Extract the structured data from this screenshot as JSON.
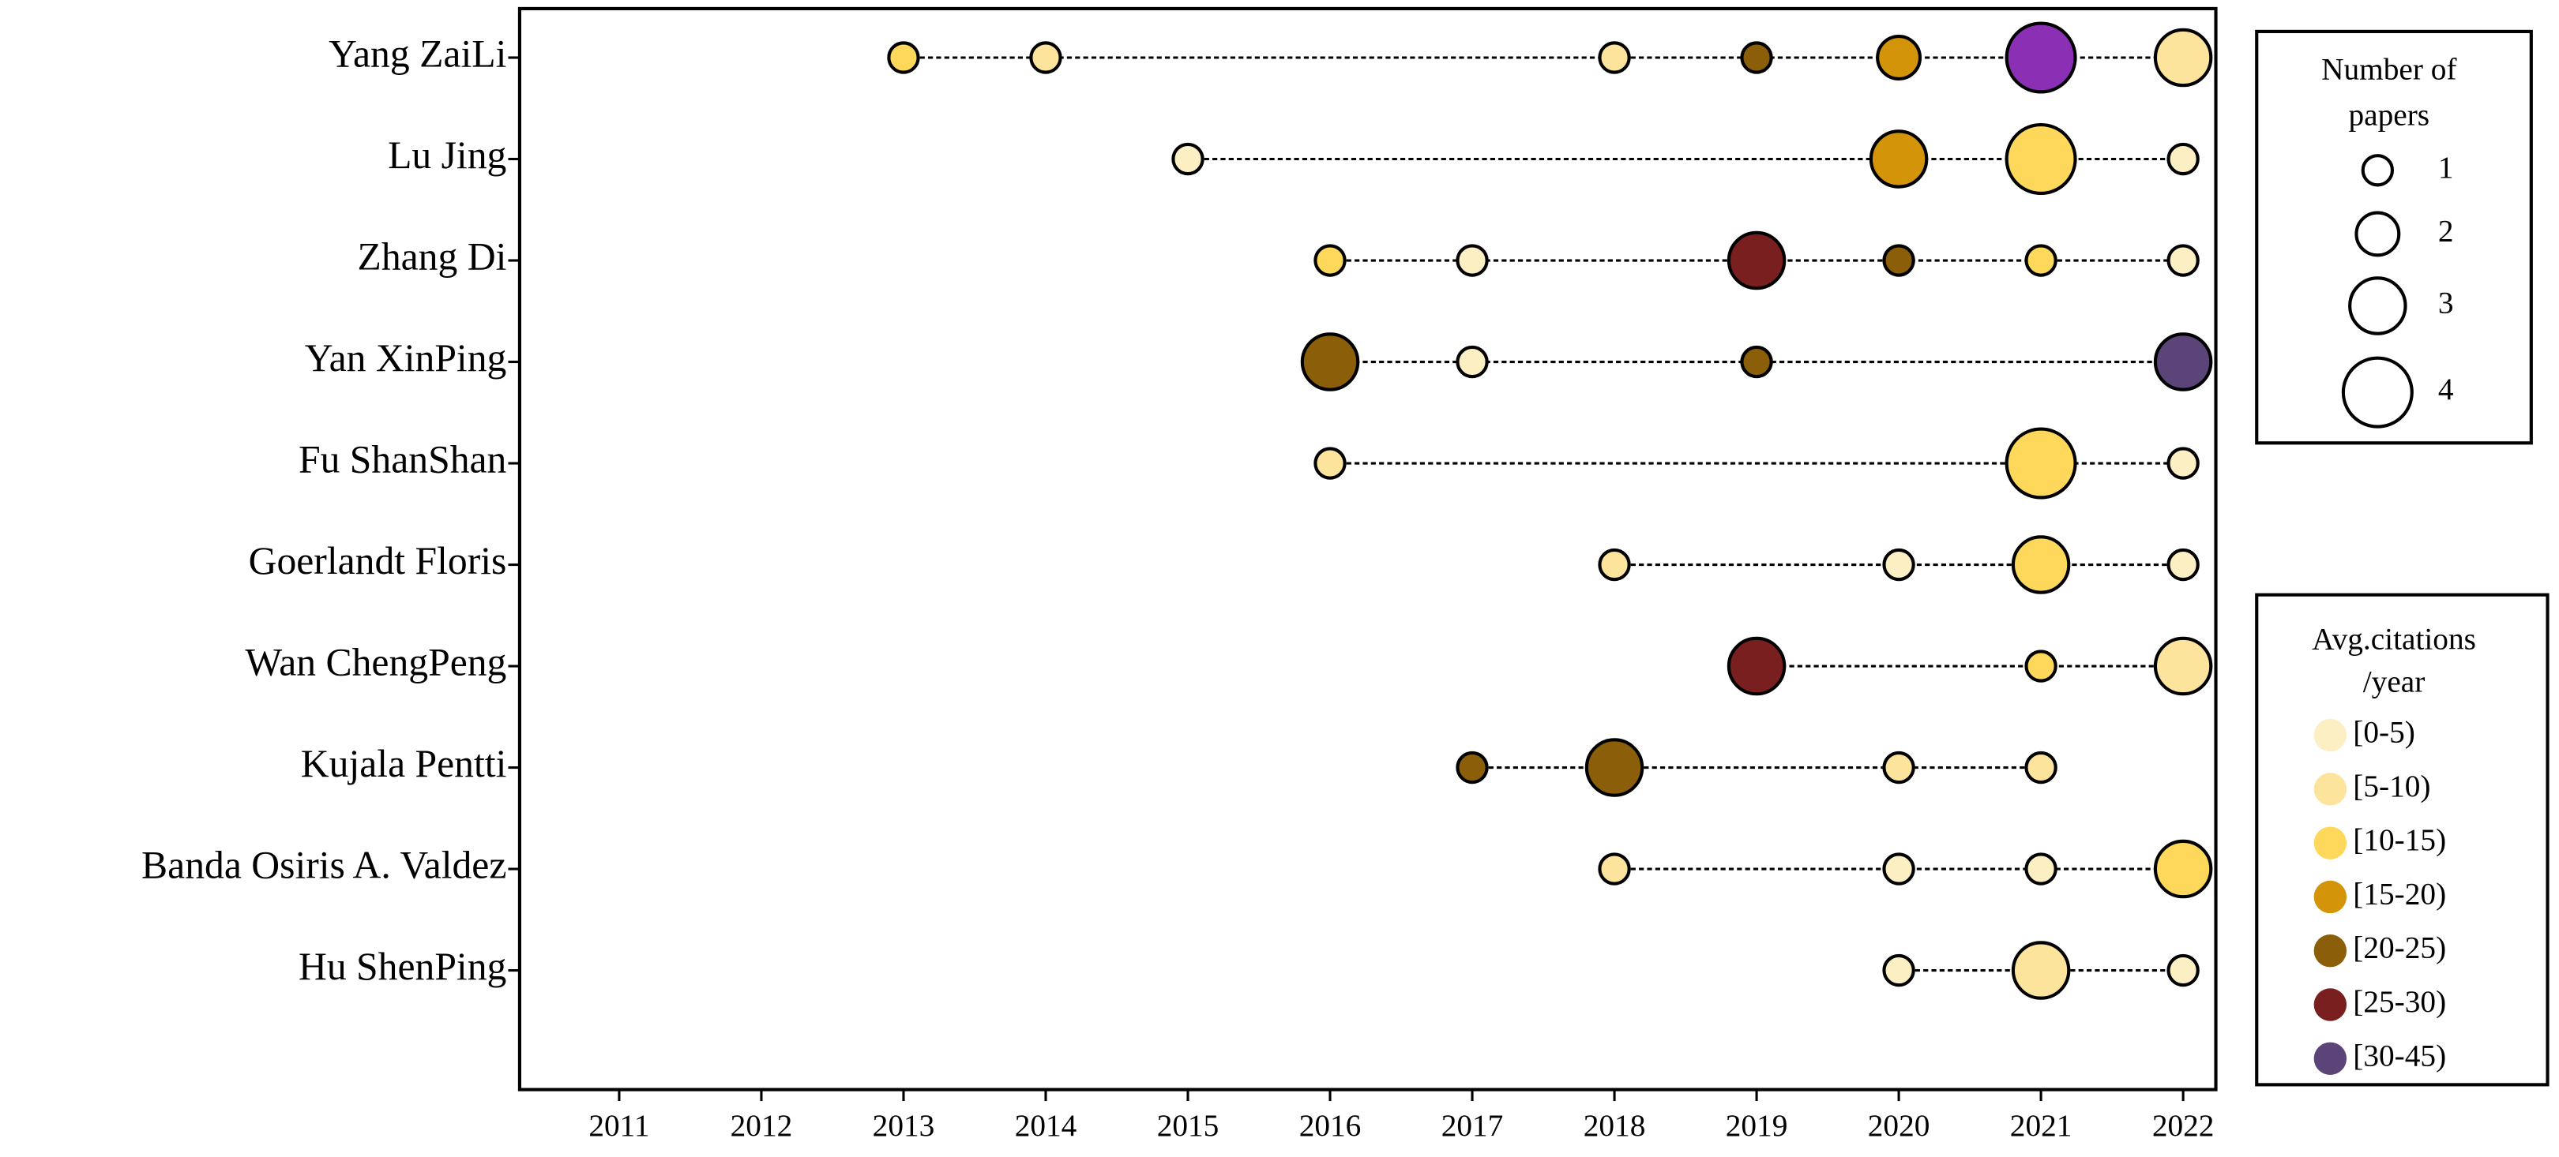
{
  "chart_data": {
    "type": "bubble",
    "xlim": [
      2010.3,
      2022.23
    ],
    "xticks": [
      2011,
      2012,
      2013,
      2014,
      2015,
      2016,
      2017,
      2018,
      2019,
      2020,
      2021,
      2022
    ],
    "series": [
      {
        "name": "Yang ZaiLi",
        "x": [
          2013,
          2014,
          2018,
          2019,
          2020,
          2021,
          2022
        ],
        "papers": [
          1,
          1,
          1,
          1,
          2,
          4,
          3
        ],
        "colors": [
          "#fdd85a",
          "#fde49c",
          "#fde49c",
          "#8b5e0a",
          "#d4940a",
          "#8b2fb5",
          "#fde49c"
        ]
      },
      {
        "name": "Lu Jing",
        "x": [
          2015,
          2020,
          2021,
          2022
        ],
        "papers": [
          1,
          3,
          4,
          1
        ],
        "colors": [
          "#fdefc4",
          "#d4940a",
          "#fdd85a",
          "#fdefc4"
        ]
      },
      {
        "name": "Zhang Di",
        "x": [
          2016,
          2017,
          2019,
          2020,
          2021,
          2022
        ],
        "papers": [
          1,
          1,
          3,
          1,
          1,
          1
        ],
        "colors": [
          "#fdd85a",
          "#fdefc4",
          "#7a1f1f",
          "#8b5e0a",
          "#fdd85a",
          "#fdefc4"
        ]
      },
      {
        "name": "Yan XinPing",
        "x": [
          2016,
          2017,
          2019,
          2022
        ],
        "papers": [
          3,
          1,
          1,
          3
        ],
        "colors": [
          "#8b5e0a",
          "#fdefc4",
          "#8b5e0a",
          "#5b4478"
        ]
      },
      {
        "name": "Fu ShanShan",
        "x": [
          2016,
          2021,
          2022
        ],
        "papers": [
          1,
          4,
          1
        ],
        "colors": [
          "#fde49c",
          "#fdd85a",
          "#fdefc4"
        ]
      },
      {
        "name": "Goerlandt Floris",
        "x": [
          2018,
          2020,
          2021,
          2022
        ],
        "papers": [
          1,
          1,
          3,
          1
        ],
        "colors": [
          "#fde49c",
          "#fdefc4",
          "#fdd85a",
          "#fdefc4"
        ]
      },
      {
        "name": "Wan ChengPeng",
        "x": [
          2019,
          2021,
          2022
        ],
        "papers": [
          3,
          1,
          3
        ],
        "colors": [
          "#7a1f1f",
          "#fdd85a",
          "#fde49c"
        ]
      },
      {
        "name": "Kujala Pentti",
        "x": [
          2017,
          2018,
          2020,
          2021
        ],
        "papers": [
          1,
          3,
          1,
          1
        ],
        "colors": [
          "#8b5e0a",
          "#8b5e0a",
          "#fde49c",
          "#fde49c"
        ]
      },
      {
        "name": "Banda Osiris A. Valdez",
        "x": [
          2018,
          2020,
          2021,
          2022
        ],
        "papers": [
          1,
          1,
          1,
          3
        ],
        "colors": [
          "#fde49c",
          "#fdefc4",
          "#fdefc4",
          "#fdd85a"
        ]
      },
      {
        "name": "Hu ShenPing",
        "x": [
          2020,
          2021,
          2022
        ],
        "papers": [
          1,
          3,
          1
        ],
        "colors": [
          "#fdefc4",
          "#fde49c",
          "#fdefc4"
        ]
      }
    ],
    "size_legend": {
      "title": [
        "Number of",
        "papers"
      ],
      "values": [
        1,
        2,
        3,
        4
      ]
    },
    "color_legend": {
      "title": [
        "Avg.citations",
        "/year"
      ],
      "entries": [
        {
          "label": "[0-5)",
          "color": "#fdefc4"
        },
        {
          "label": "[5-10)",
          "color": "#fde49c"
        },
        {
          "label": "[10-15)",
          "color": "#fdd85a"
        },
        {
          "label": "[15-20)",
          "color": "#d4940a"
        },
        {
          "label": "[20-25)",
          "color": "#8b5e0a"
        },
        {
          "label": "[25-30)",
          "color": "#7a1f1f"
        },
        {
          "label": "[30-45)",
          "color": "#5b4478"
        }
      ]
    }
  }
}
